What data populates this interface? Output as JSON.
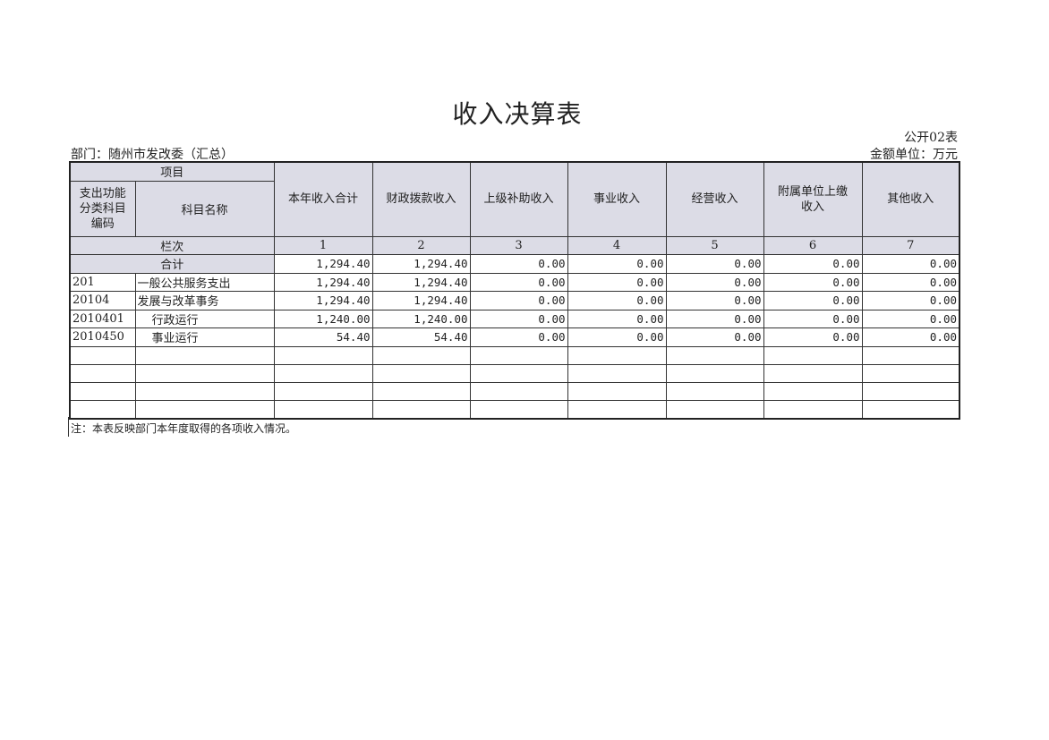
{
  "title": "收入决算表",
  "form_number": "公开02表",
  "department": "部门：随州市发改委（汇总）",
  "unit": "金额单位：万元",
  "header": {
    "item_group": "项目",
    "code_col": "支出功能分类科目编码",
    "name_col": "科目名称",
    "columns": [
      "本年收入合计",
      "财政拨款收入",
      "上级补助收入",
      "事业收入",
      "经营收入",
      "附属单位上缴收入",
      "其他收入"
    ],
    "row_index_label": "栏次",
    "column_numbers": [
      "1",
      "2",
      "3",
      "4",
      "5",
      "6",
      "7"
    ]
  },
  "total_row": {
    "label": "合计",
    "values": [
      "1,294.40",
      "1,294.40",
      "0.00",
      "0.00",
      "0.00",
      "0.00",
      "0.00"
    ]
  },
  "rows": [
    {
      "code": "201",
      "name": "一般公共服务支出",
      "indent": false,
      "values": [
        "1,294.40",
        "1,294.40",
        "0.00",
        "0.00",
        "0.00",
        "0.00",
        "0.00"
      ]
    },
    {
      "code": "20104",
      "name": "发展与改革事务",
      "indent": false,
      "values": [
        "1,294.40",
        "1,294.40",
        "0.00",
        "0.00",
        "0.00",
        "0.00",
        "0.00"
      ]
    },
    {
      "code": "2010401",
      "name": "行政运行",
      "indent": true,
      "values": [
        "1,240.00",
        "1,240.00",
        "0.00",
        "0.00",
        "0.00",
        "0.00",
        "0.00"
      ]
    },
    {
      "code": "2010450",
      "name": "事业运行",
      "indent": true,
      "values": [
        "54.40",
        "54.40",
        "0.00",
        "0.00",
        "0.00",
        "0.00",
        "0.00"
      ]
    }
  ],
  "empty_rows": 4,
  "note": "注：本表反映部门本年度取得的各项收入情况。",
  "colors": {
    "header_bg": "#dcdce6",
    "border": "#333333"
  }
}
